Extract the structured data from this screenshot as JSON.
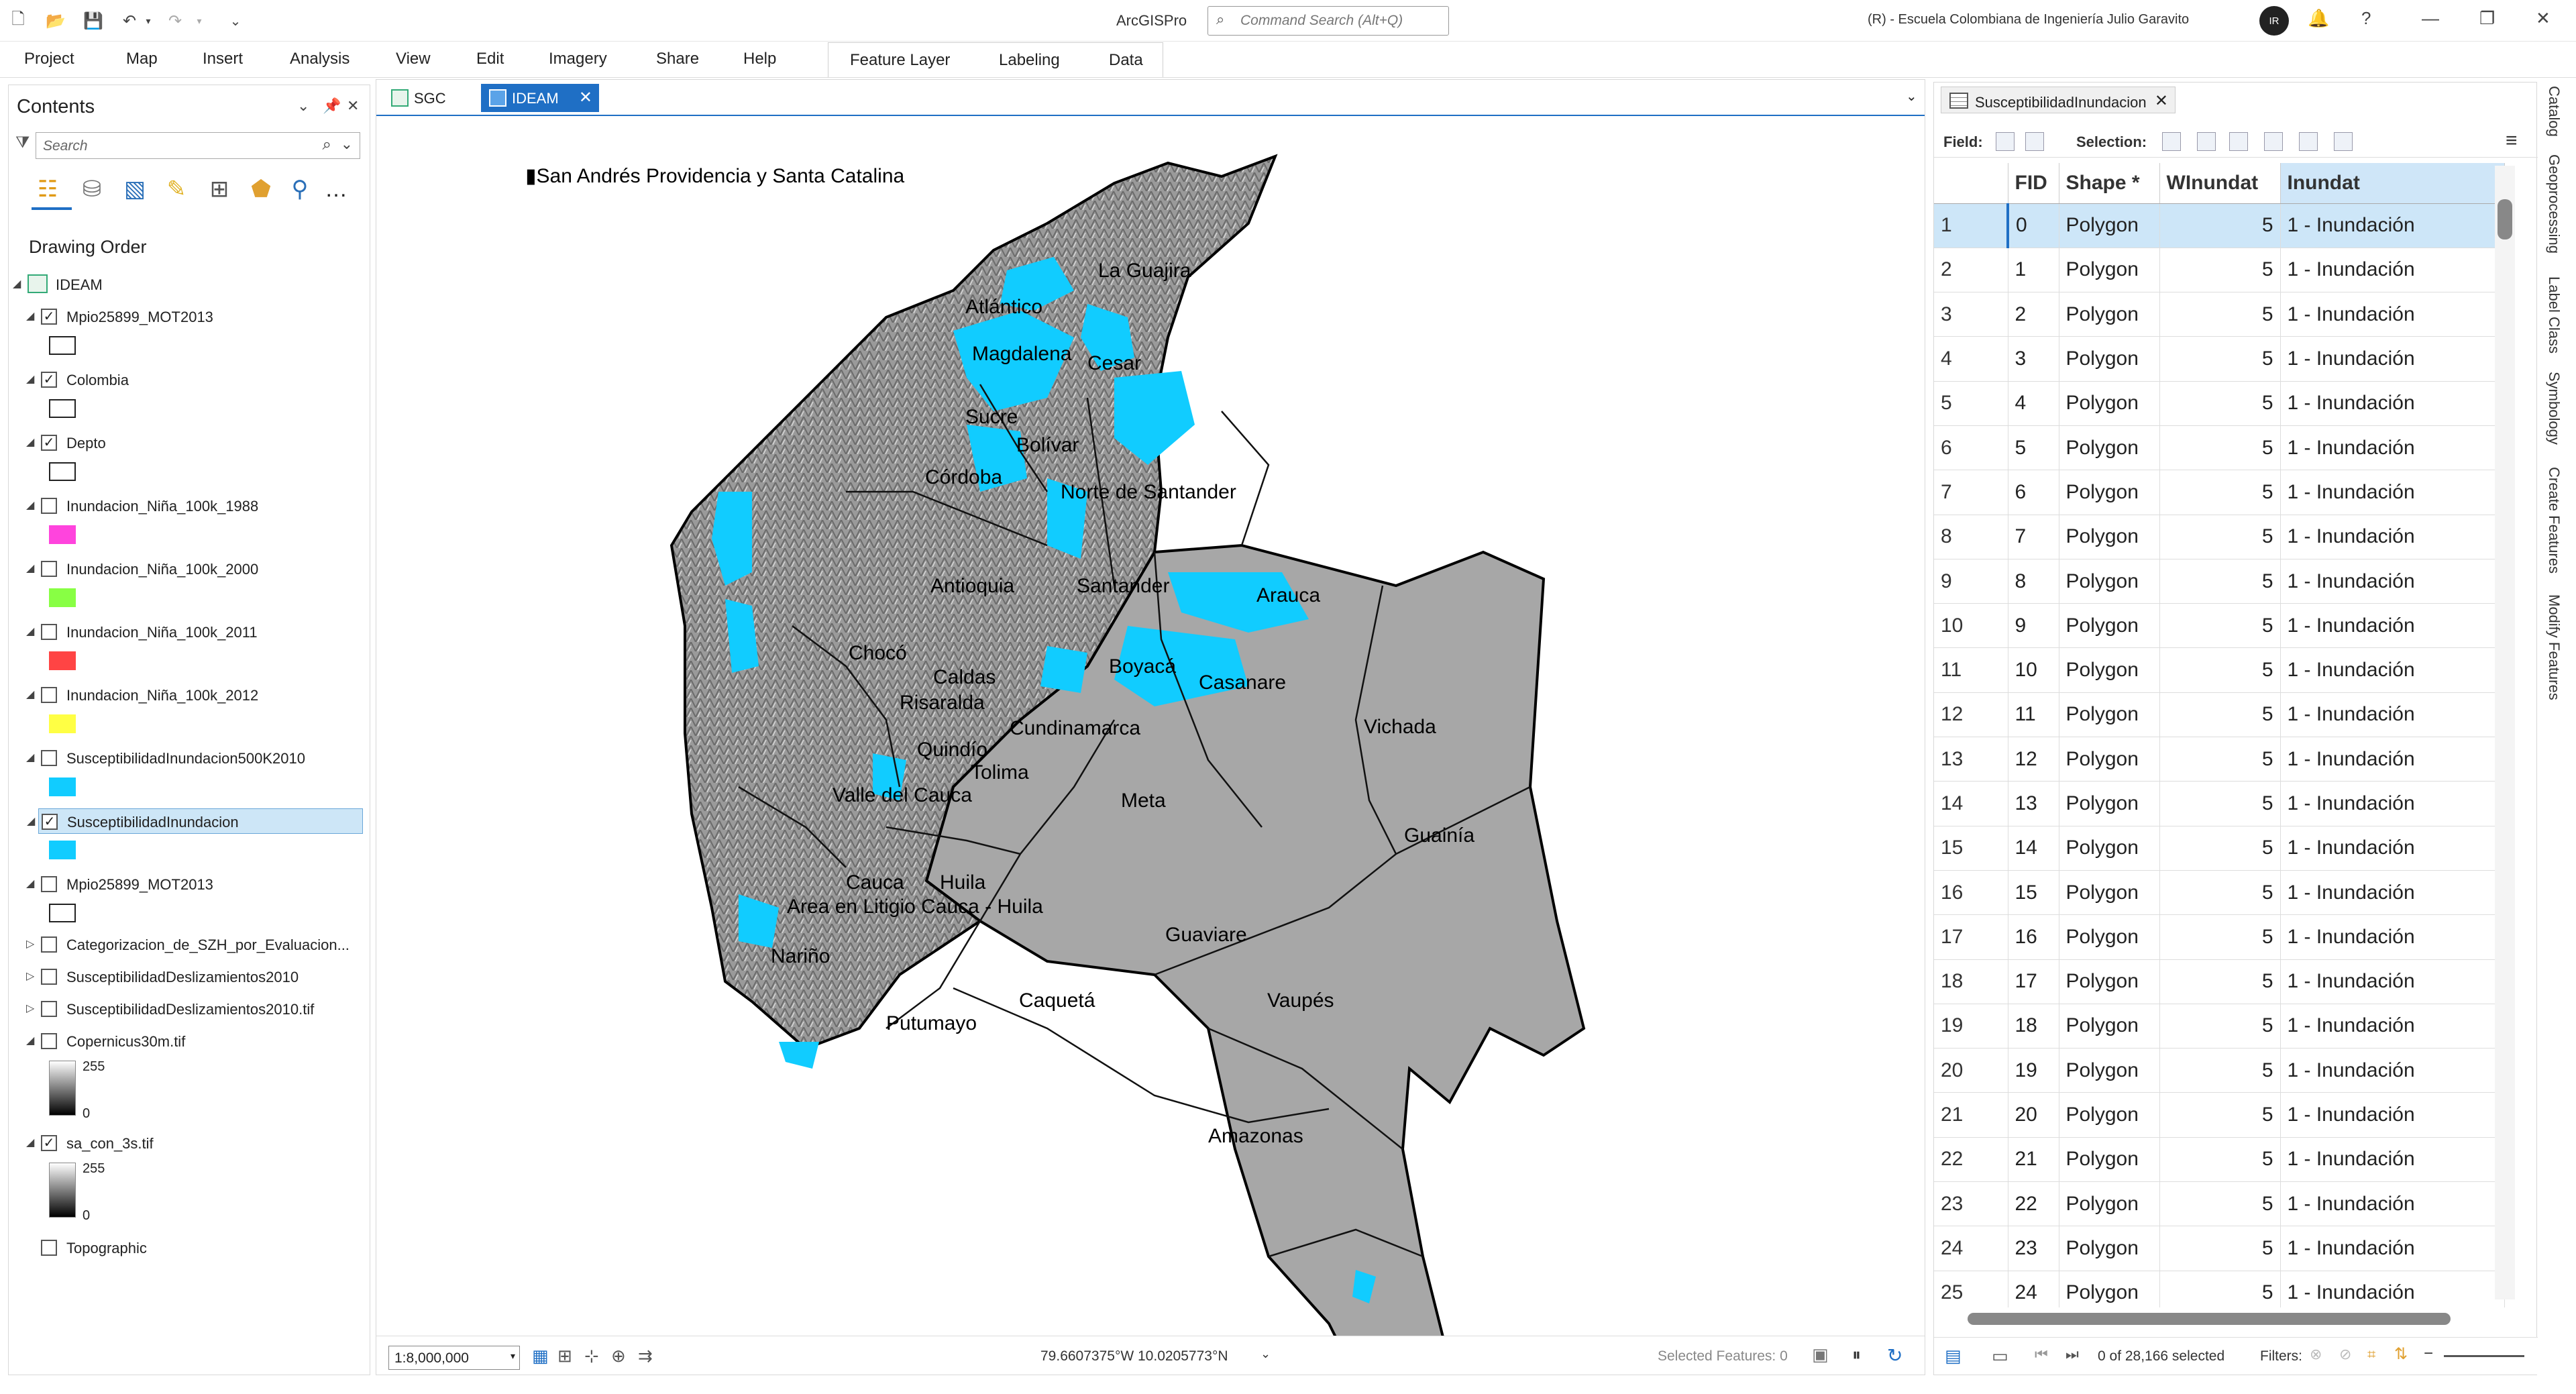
{
  "titlebar": {
    "app_title": "ArcGISPro",
    "command_search_placeholder": "Command Search (Alt+Q)",
    "account": "(R) - Escuela Colombiana de Ingeniería Julio Garavito",
    "avatar_initials": "IR"
  },
  "ribbon": {
    "tabs": [
      "Project",
      "Map",
      "Insert",
      "Analysis",
      "View",
      "Edit",
      "Imagery",
      "Share",
      "Help"
    ],
    "contextual_tabs": [
      "Feature Layer",
      "Labeling",
      "Data"
    ]
  },
  "contents": {
    "title": "Contents",
    "search_placeholder": "Search",
    "drawing_order_label": "Drawing Order",
    "map_name": "IDEAM",
    "layers": [
      {
        "name": "Mpio25899_MOT2013",
        "checked": true,
        "swatch": "#ffffff"
      },
      {
        "name": "Colombia",
        "checked": true,
        "swatch": "#ffffff"
      },
      {
        "name": "Depto",
        "checked": true,
        "swatch": "#ffffff"
      },
      {
        "name": "Inundacion_Niña_100k_1988",
        "checked": false,
        "swatch": "#ff44dd"
      },
      {
        "name": "Inundacion_Niña_100k_2000",
        "checked": false,
        "swatch": "#88ff44"
      },
      {
        "name": "Inundacion_Niña_100k_2011",
        "checked": false,
        "swatch": "#ff4444"
      },
      {
        "name": "Inundacion_Niña_100k_2012",
        "checked": false,
        "swatch": "#ffff44"
      },
      {
        "name": "SusceptibilidadInundacion500K2010",
        "checked": false,
        "swatch": "#11ccff"
      },
      {
        "name": "SusceptibilidadInundacion",
        "checked": true,
        "swatch": "#11ccff"
      },
      {
        "name": "Mpio25899_MOT2013",
        "checked": false,
        "swatch": "#ffffff"
      }
    ],
    "collapsed_layers": [
      "Categorizacion_de_SZH_por_Evaluacion...",
      "SusceptibilidadDeslizamientos2010",
      "SusceptibilidadDeslizamientos2010.tif"
    ],
    "raster_layers": [
      {
        "name": "Copernicus30m.tif",
        "checked": false,
        "max": "255",
        "min": "0"
      },
      {
        "name": "sa_con_3s.tif",
        "checked": true,
        "max": "255",
        "min": "0"
      }
    ],
    "basemap": "Topographic"
  },
  "map": {
    "tabs": [
      "SGC",
      "IDEAM"
    ],
    "inset_title": "San Andrés Providencia y Santa Catalina",
    "labels": [
      "La Guajira",
      "Atlántico",
      "Magdalena",
      "Cesar",
      "Sucre",
      "Bolívar",
      "Córdoba",
      "Norte de Santander",
      "Antioquia",
      "Santander",
      "Arauca",
      "Chocó",
      "Caldas",
      "Boyacá",
      "Casanare",
      "Risaralda",
      "Cundinamarca",
      "Vichada",
      "Quindío",
      "Tolima",
      "Valle del Cauca",
      "Meta",
      "Cauca",
      "Huila",
      "Guainía",
      "Area en Litigio Cauca - Huila",
      "Guaviare",
      "Nariño",
      "Caquetá",
      "Vaupés",
      "Putumayo",
      "Amazonas"
    ],
    "scale": "1:8,000,000",
    "coordinates": "79.6607375°W 10.0205773°N",
    "selected_features": "Selected Features: 0"
  },
  "attribute_table": {
    "tab_title": "SusceptibilidadInundacion",
    "field_label": "Field:",
    "selection_label": "Selection:",
    "columns": [
      "FID",
      "Shape *",
      "WInundat",
      "Inundat"
    ],
    "rows": [
      [
        "1",
        "0",
        "Polygon",
        "5",
        "1 - Inundación"
      ],
      [
        "2",
        "1",
        "Polygon",
        "5",
        "1 - Inundación"
      ],
      [
        "3",
        "2",
        "Polygon",
        "5",
        "1 - Inundación"
      ],
      [
        "4",
        "3",
        "Polygon",
        "5",
        "1 - Inundación"
      ],
      [
        "5",
        "4",
        "Polygon",
        "5",
        "1 - Inundación"
      ],
      [
        "6",
        "5",
        "Polygon",
        "5",
        "1 - Inundación"
      ],
      [
        "7",
        "6",
        "Polygon",
        "5",
        "1 - Inundación"
      ],
      [
        "8",
        "7",
        "Polygon",
        "5",
        "1 - Inundación"
      ],
      [
        "9",
        "8",
        "Polygon",
        "5",
        "1 - Inundación"
      ],
      [
        "10",
        "9",
        "Polygon",
        "5",
        "1 - Inundación"
      ],
      [
        "11",
        "10",
        "Polygon",
        "5",
        "1 - Inundación"
      ],
      [
        "12",
        "11",
        "Polygon",
        "5",
        "1 - Inundación"
      ],
      [
        "13",
        "12",
        "Polygon",
        "5",
        "1 - Inundación"
      ],
      [
        "14",
        "13",
        "Polygon",
        "5",
        "1 - Inundación"
      ],
      [
        "15",
        "14",
        "Polygon",
        "5",
        "1 - Inundación"
      ],
      [
        "16",
        "15",
        "Polygon",
        "5",
        "1 - Inundación"
      ],
      [
        "17",
        "16",
        "Polygon",
        "5",
        "1 - Inundación"
      ],
      [
        "18",
        "17",
        "Polygon",
        "5",
        "1 - Inundación"
      ],
      [
        "19",
        "18",
        "Polygon",
        "5",
        "1 - Inundación"
      ],
      [
        "20",
        "19",
        "Polygon",
        "5",
        "1 - Inundación"
      ],
      [
        "21",
        "20",
        "Polygon",
        "5",
        "1 - Inundación"
      ],
      [
        "22",
        "21",
        "Polygon",
        "5",
        "1 - Inundación"
      ],
      [
        "23",
        "22",
        "Polygon",
        "5",
        "1 - Inundación"
      ],
      [
        "24",
        "23",
        "Polygon",
        "5",
        "1 - Inundación"
      ],
      [
        "25",
        "24",
        "Polygon",
        "5",
        "1 - Inundación"
      ]
    ],
    "record_count": "0 of 28,166 selected",
    "filters_label": "Filters:"
  },
  "side_tabs": [
    "Catalog",
    "Geoprocessing",
    "Label Class",
    "Symbology",
    "Create Features",
    "Modify Features"
  ],
  "colors": {
    "accent": "#1f6fc5",
    "flood": "#11ccff",
    "land": "#a0a0a0"
  }
}
